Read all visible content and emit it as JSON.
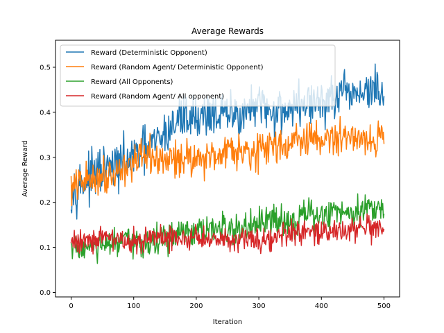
{
  "chart_data": {
    "type": "line",
    "title": "Average Rewards",
    "xlabel": "Iteration",
    "ylabel": "Average Reward",
    "xlim": [
      -25,
      525
    ],
    "ylim": [
      -0.01,
      0.56
    ],
    "x_ticks": [
      0,
      100,
      200,
      300,
      400,
      500
    ],
    "y_ticks": [
      0.0,
      0.1,
      0.2,
      0.3,
      0.4,
      0.5
    ],
    "x_tick_labels": [
      "0",
      "100",
      "200",
      "300",
      "400",
      "500"
    ],
    "y_tick_labels": [
      "0.0",
      "0.1",
      "0.2",
      "0.3",
      "0.4",
      "0.5"
    ],
    "legend_position": "top-left",
    "series": [
      {
        "name": "Reward (Deterministic Opponent)",
        "color": "#1f77b4",
        "x": [
          0,
          25,
          50,
          75,
          100,
          125,
          150,
          175,
          200,
          225,
          250,
          275,
          300,
          325,
          350,
          375,
          400,
          425,
          450,
          475,
          500
        ],
        "values": [
          0.23,
          0.25,
          0.27,
          0.28,
          0.3,
          0.32,
          0.35,
          0.39,
          0.39,
          0.4,
          0.39,
          0.4,
          0.41,
          0.4,
          0.41,
          0.42,
          0.42,
          0.43,
          0.44,
          0.45,
          0.44
        ],
        "noise": 0.045
      },
      {
        "name": "Reward (Random Agent/ Deterministic Opponent)",
        "color": "#ff7f0e",
        "x": [
          0,
          25,
          50,
          75,
          100,
          125,
          150,
          175,
          200,
          225,
          250,
          275,
          300,
          325,
          350,
          375,
          400,
          425,
          450,
          475,
          500
        ],
        "values": [
          0.23,
          0.25,
          0.26,
          0.27,
          0.29,
          0.3,
          0.29,
          0.3,
          0.3,
          0.3,
          0.32,
          0.32,
          0.31,
          0.33,
          0.33,
          0.34,
          0.34,
          0.34,
          0.35,
          0.34,
          0.34
        ],
        "noise": 0.035
      },
      {
        "name": "Reward (All Opponents)",
        "color": "#2ca02c",
        "x": [
          0,
          25,
          50,
          75,
          100,
          125,
          150,
          175,
          200,
          225,
          250,
          275,
          300,
          325,
          350,
          375,
          400,
          425,
          450,
          475,
          500
        ],
        "values": [
          0.1,
          0.1,
          0.1,
          0.11,
          0.11,
          0.11,
          0.12,
          0.13,
          0.13,
          0.14,
          0.14,
          0.14,
          0.15,
          0.16,
          0.16,
          0.17,
          0.17,
          0.18,
          0.18,
          0.19,
          0.19
        ],
        "noise": 0.03
      },
      {
        "name": "Reward (Random Agent/ All opponent)",
        "color": "#d62728",
        "x": [
          0,
          25,
          50,
          75,
          100,
          125,
          150,
          175,
          200,
          225,
          250,
          275,
          300,
          325,
          350,
          375,
          400,
          425,
          450,
          475,
          500
        ],
        "values": [
          0.11,
          0.12,
          0.12,
          0.12,
          0.11,
          0.12,
          0.12,
          0.12,
          0.12,
          0.12,
          0.12,
          0.12,
          0.12,
          0.12,
          0.13,
          0.13,
          0.13,
          0.14,
          0.14,
          0.14,
          0.13
        ],
        "noise": 0.025
      }
    ]
  }
}
